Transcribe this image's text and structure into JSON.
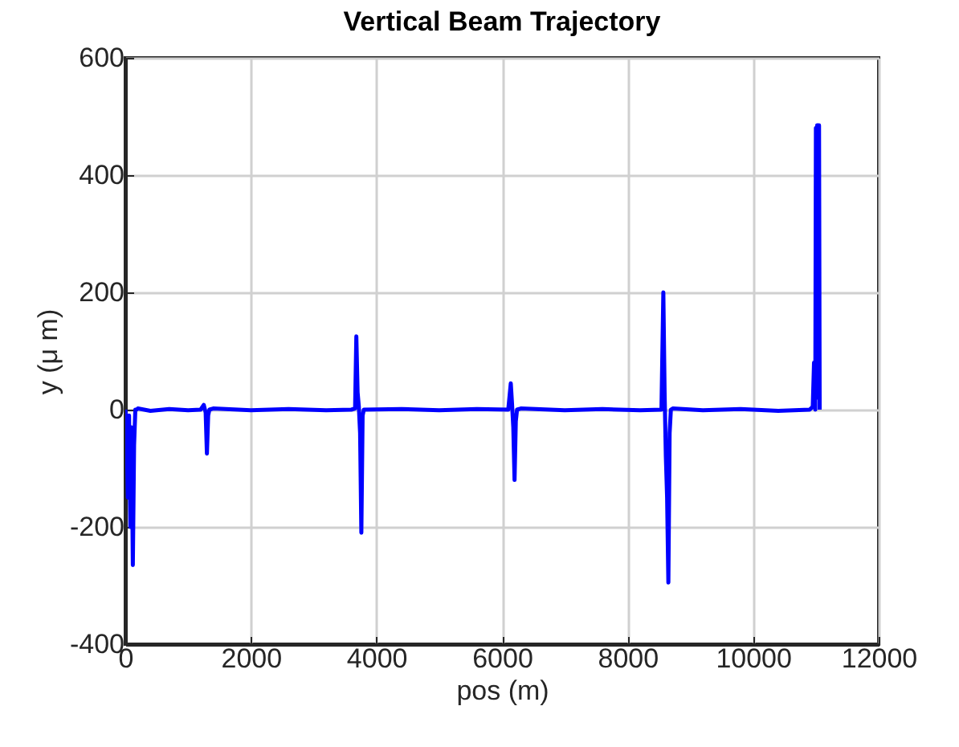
{
  "chart_data": {
    "type": "line",
    "title": "Vertical Beam Trajectory",
    "xlabel": "pos (m)",
    "ylabel": "y (μ m)",
    "series": [
      {
        "color": "#0000ff",
        "x": [
          0,
          20,
          40,
          60,
          80,
          100,
          120,
          140,
          160,
          180,
          200,
          400,
          700,
          1000,
          1200,
          1250,
          1280,
          1300,
          1320,
          1340,
          1400,
          2000,
          2600,
          3200,
          3600,
          3660,
          3680,
          3700,
          3720,
          3740,
          3760,
          3780,
          3800,
          4400,
          5000,
          5600,
          6100,
          6140,
          6160,
          6180,
          6200,
          6220,
          6240,
          6300,
          7000,
          7600,
          8200,
          8540,
          8570,
          8590,
          8610,
          8630,
          8650,
          8670,
          8690,
          8720,
          9200,
          9800,
          10400,
          10900,
          10950,
          10970,
          10990,
          11000,
          11010,
          11020,
          11030,
          11040,
          11050,
          11060
        ],
        "values": [
          0,
          -20,
          -150,
          -10,
          -200,
          -30,
          -265,
          -60,
          0,
          0,
          2,
          -2,
          1,
          -1,
          0,
          8,
          -5,
          -75,
          -10,
          0,
          2,
          -1,
          1,
          -1,
          0,
          2,
          125,
          30,
          5,
          -40,
          -210,
          -10,
          0,
          1,
          -1,
          1,
          0,
          45,
          10,
          -30,
          -120,
          -20,
          0,
          2,
          -1,
          1,
          -1,
          0,
          200,
          30,
          -80,
          -150,
          -295,
          -40,
          0,
          2,
          -1,
          1,
          -2,
          0,
          5,
          80,
          0,
          480,
          20,
          485,
          50,
          485,
          485,
          0
        ]
      }
    ],
    "xlim": [
      0,
      12000
    ],
    "xticks": [
      0,
      2000,
      4000,
      6000,
      8000,
      10000,
      12000
    ],
    "ylim": [
      -400,
      600
    ],
    "yticks": [
      -400,
      -200,
      0,
      200,
      400,
      600
    ],
    "grid": true
  }
}
